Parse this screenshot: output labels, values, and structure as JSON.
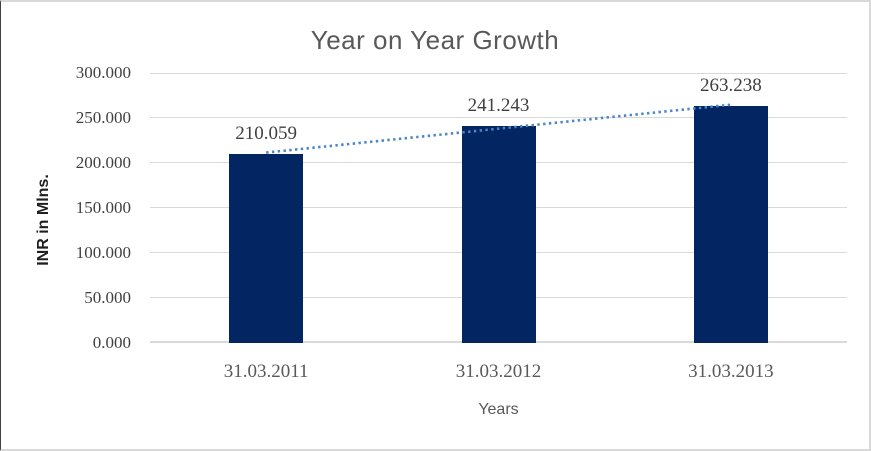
{
  "frame": {
    "background": "#ffffff",
    "border_color": "#d9d9d9",
    "left_border_color": "#404040"
  },
  "chart_data": {
    "type": "bar",
    "title": "Year on Year Growth",
    "xlabel": "Years",
    "ylabel": "INR in Mlns.",
    "categories": [
      "31.03.2011",
      "31.03.2012",
      "31.03.2013"
    ],
    "values": [
      210.059,
      241.243,
      263.238
    ],
    "data_labels": [
      "210.059",
      "241.243",
      "263.238"
    ],
    "ylim": [
      0,
      300
    ],
    "ytick_interval": 50,
    "ytick_labels": [
      "0.000",
      "50.000",
      "100.000",
      "150.000",
      "200.000",
      "250.000",
      "300.000"
    ],
    "grid": "horizontal-major",
    "legend": "none",
    "trendline": {
      "type": "linear",
      "style": "dotted",
      "color": "#4a86c8"
    },
    "colors": {
      "bar": "#032663",
      "gridline": "#d9d9d9",
      "axis_line": "#d9d9d9",
      "title_text": "#595959",
      "axis_title_text": "#595959",
      "y_axis_title_text": "#1f1f1f",
      "tick_label_text": "#404040",
      "category_label_text": "#595959"
    }
  }
}
